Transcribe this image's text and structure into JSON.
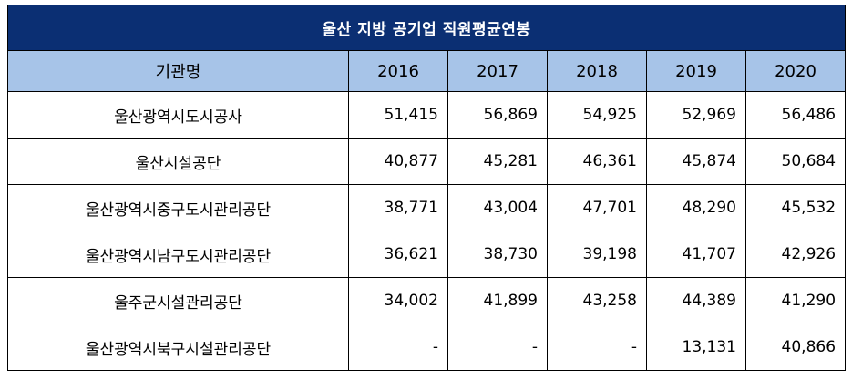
{
  "table": {
    "title": "울산 지방 공기업 직원평균연봉",
    "headers": [
      "기관명",
      "2016",
      "2017",
      "2018",
      "2019",
      "2020"
    ],
    "rows": [
      {
        "name": "울산광역시도시공사",
        "values": [
          "51,415",
          "56,869",
          "54,925",
          "52,969",
          "56,486"
        ]
      },
      {
        "name": "울산시설공단",
        "values": [
          "40,877",
          "45,281",
          "46,361",
          "45,874",
          "50,684"
        ]
      },
      {
        "name": "울산광역시중구도시관리공단",
        "values": [
          "38,771",
          "43,004",
          "47,701",
          "48,290",
          "45,532"
        ]
      },
      {
        "name": "울산광역시남구도시관리공단",
        "values": [
          "36,621",
          "38,730",
          "39,198",
          "41,707",
          "42,926"
        ]
      },
      {
        "name": "울주군시설관리공단",
        "values": [
          "34,002",
          "41,899",
          "43,258",
          "44,389",
          "41,290"
        ]
      },
      {
        "name": "울산광역시북구시설관리공단",
        "values": [
          "-",
          "-",
          "-",
          "13,131",
          "40,866"
        ]
      }
    ]
  },
  "colors": {
    "title_background": "#0b2f73",
    "title_text": "#ffffff",
    "header_background": "#a7c4e8",
    "border": "#000000"
  }
}
